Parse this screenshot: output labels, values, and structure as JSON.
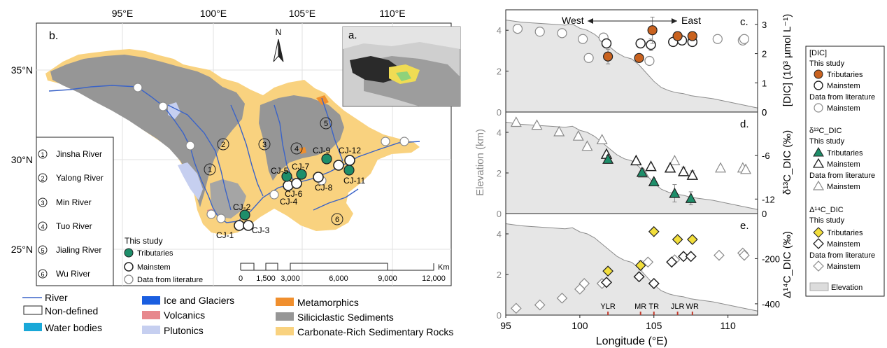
{
  "map": {
    "panel_label": "b.",
    "inset_label": "a.",
    "north": "N",
    "lon_ticks": [
      "95°E",
      "100°E",
      "105°E",
      "110°E"
    ],
    "lat_ticks": [
      "35°N",
      "30°N",
      "25°N"
    ],
    "rivers": [
      {
        "num": "1",
        "name": "Jinsha River"
      },
      {
        "num": "2",
        "name": "Yalong River"
      },
      {
        "num": "3",
        "name": "Min River"
      },
      {
        "num": "4",
        "name": "Tuo River"
      },
      {
        "num": "5",
        "name": "Jialing River"
      },
      {
        "num": "6",
        "name": "Wu River"
      }
    ],
    "sites": [
      "CJ-1",
      "CJ-2",
      "CJ-3",
      "CJ-4",
      "CJ-5",
      "CJ-6",
      "CJ-7",
      "CJ-8",
      "CJ-9",
      "CJ-11",
      "CJ-12"
    ],
    "key": {
      "title": "This study",
      "tributaries": "Tributaries",
      "mainstem": "Mainstem",
      "literature": "Data from literature"
    },
    "scale": {
      "unit": "Km",
      "labels": [
        "0",
        "1,500",
        "3,000",
        "6,000",
        "9,000",
        "12,000"
      ]
    },
    "legend": {
      "river": "River",
      "nondefined": "Non-defined",
      "water": "Water bodies",
      "ice": "Ice and Glaciers",
      "volcanics": "Volcanics",
      "plutonics": "Plutonics",
      "metamorphics": "Metamorphics",
      "siliciclastic": "Siliciclastic Sediments",
      "carbonate": "Carbonate-Rich Sedimentary Rocks"
    },
    "colors": {
      "carbonate": "#f9d27f",
      "siliciclastic": "#969696",
      "plutonic": "#c6cff0",
      "metamorphic": "#f08f2e",
      "volcanic": "#e7888d",
      "ice": "#1a5ee0",
      "water": "#19a8d8",
      "river": "#3a63c8",
      "tributary": "#1e8e6a",
      "tributary_dic": "#c9621f",
      "tributary_delta": "#f2de3b"
    }
  },
  "right": {
    "west": "West",
    "east": "East",
    "xlabel": "Longitude (°E)",
    "ylabel_left": "Elevation (km)",
    "ylabel_c": "[DIC] (10³ µmol L⁻¹)",
    "ylabel_d": "δ¹³C_DIC (‰)",
    "ylabel_e": "Δ¹⁴C_DIC (‰)",
    "tributary_marks": [
      "YLR",
      "MR",
      "TR",
      "JLR",
      "WR"
    ]
  },
  "side_legend": {
    "dic_title": "[DIC]",
    "d13_title": "δ¹³C_DIC",
    "d14_title": "Δ¹⁴C_DIC",
    "this_study": "This study",
    "tributaries": "Tributaries",
    "mainstem": "Mainstem",
    "lit": "Data from literature",
    "elevation": "Elevation"
  },
  "chart_data": [
    {
      "type": "scatter",
      "title": "c.",
      "xlabel": "Longitude (°E)",
      "ylabel": "[DIC] (10³ µmol L⁻¹)",
      "xlim": [
        95,
        112
      ],
      "ylim": [
        0,
        3.5
      ],
      "y_ticks": [
        0,
        1,
        2,
        3
      ],
      "elev_ticks": [
        0,
        2,
        4
      ],
      "series": [
        {
          "name": "Tributaries",
          "x": [
            101.9,
            104.0,
            104.9,
            106.6,
            107.6
          ],
          "y": [
            1.9,
            1.85,
            2.8,
            2.6,
            2.6
          ],
          "err": [
            0.25,
            0.12,
            0.45,
            0.15,
            0.15
          ]
        },
        {
          "name": "Mainstem",
          "x": [
            101.8,
            104.1,
            104.8,
            106.3,
            106.9,
            107.6
          ],
          "y": [
            2.35,
            2.35,
            2.3,
            2.4,
            2.45,
            2.4
          ],
          "err": [
            0,
            0,
            0.2,
            0,
            0.12,
            0
          ]
        },
        {
          "name": "Data from literature",
          "x": [
            95.8,
            97.3,
            98.8,
            100.2,
            100.6,
            101.6,
            104.7,
            109.3,
            111.0,
            111.1
          ],
          "y": [
            2.85,
            2.75,
            2.7,
            2.5,
            1.85,
            2.55,
            1.75,
            2.5,
            2.45,
            2.5
          ]
        }
      ]
    },
    {
      "type": "scatter",
      "title": "d.",
      "xlabel": "Longitude (°E)",
      "ylabel": "δ¹³C_DIC (‰)",
      "xlim": [
        95,
        112
      ],
      "ylim": [
        -14,
        0
      ],
      "y_ticks": [
        -12,
        -6,
        0
      ],
      "elev_ticks": [
        0,
        2,
        4
      ],
      "series": [
        {
          "name": "Tributaries",
          "x": [
            101.9,
            104.2,
            105.0,
            106.4,
            107.5
          ],
          "y": [
            -6.5,
            -8.3,
            -9.6,
            -11.2,
            -11.9
          ],
          "err": [
            0.5,
            0.5,
            0.4,
            1.2,
            0.9
          ]
        },
        {
          "name": "Mainstem",
          "x": [
            101.8,
            103.8,
            104.8,
            106.1,
            107.0,
            107.6
          ],
          "y": [
            -5.8,
            -6.7,
            -7.5,
            -7.7,
            -8.2,
            -8.7
          ],
          "err": [
            0,
            0,
            0,
            0,
            0.6,
            0.6
          ]
        },
        {
          "name": "Data from literature",
          "x": [
            95.7,
            97.1,
            98.6,
            99.9,
            100.5,
            101.5,
            104.3,
            106.4,
            109.5,
            111.0,
            111.2
          ],
          "y": [
            -1.4,
            -1.8,
            -2.7,
            -3.3,
            -4.7,
            -3.8,
            -8.4,
            -6.7,
            -7.7,
            -7.7,
            -7.9
          ]
        }
      ]
    },
    {
      "type": "scatter",
      "title": "e.",
      "xlabel": "Longitude (°E)",
      "ylabel": "Δ¹⁴C_DIC (‰)",
      "xlim": [
        95,
        112
      ],
      "ylim": [
        -450,
        0
      ],
      "y_ticks": [
        -400,
        -200,
        0
      ],
      "elev_ticks": [
        0,
        2,
        4
      ],
      "series": [
        {
          "name": "Tributaries",
          "x": [
            101.9,
            104.1,
            105.0,
            106.6,
            107.6
          ],
          "y": [
            -255,
            -230,
            -80,
            -115,
            -115
          ],
          "err": [
            0,
            20,
            0,
            0,
            0
          ]
        },
        {
          "name": "Mainstem",
          "x": [
            101.8,
            104.0,
            105.0,
            106.2,
            107.0,
            107.5
          ],
          "y": [
            -305,
            -280,
            -310,
            -215,
            -190,
            -190
          ]
        },
        {
          "name": "Data from literature",
          "x": [
            95.7,
            97.3,
            98.8,
            100.0,
            100.3,
            101.5,
            104.6,
            106.4,
            109.4,
            111.0,
            111.1
          ],
          "y": [
            -420,
            -405,
            -375,
            -335,
            -310,
            -310,
            -215,
            -205,
            -185,
            -175,
            -185
          ]
        }
      ]
    }
  ]
}
